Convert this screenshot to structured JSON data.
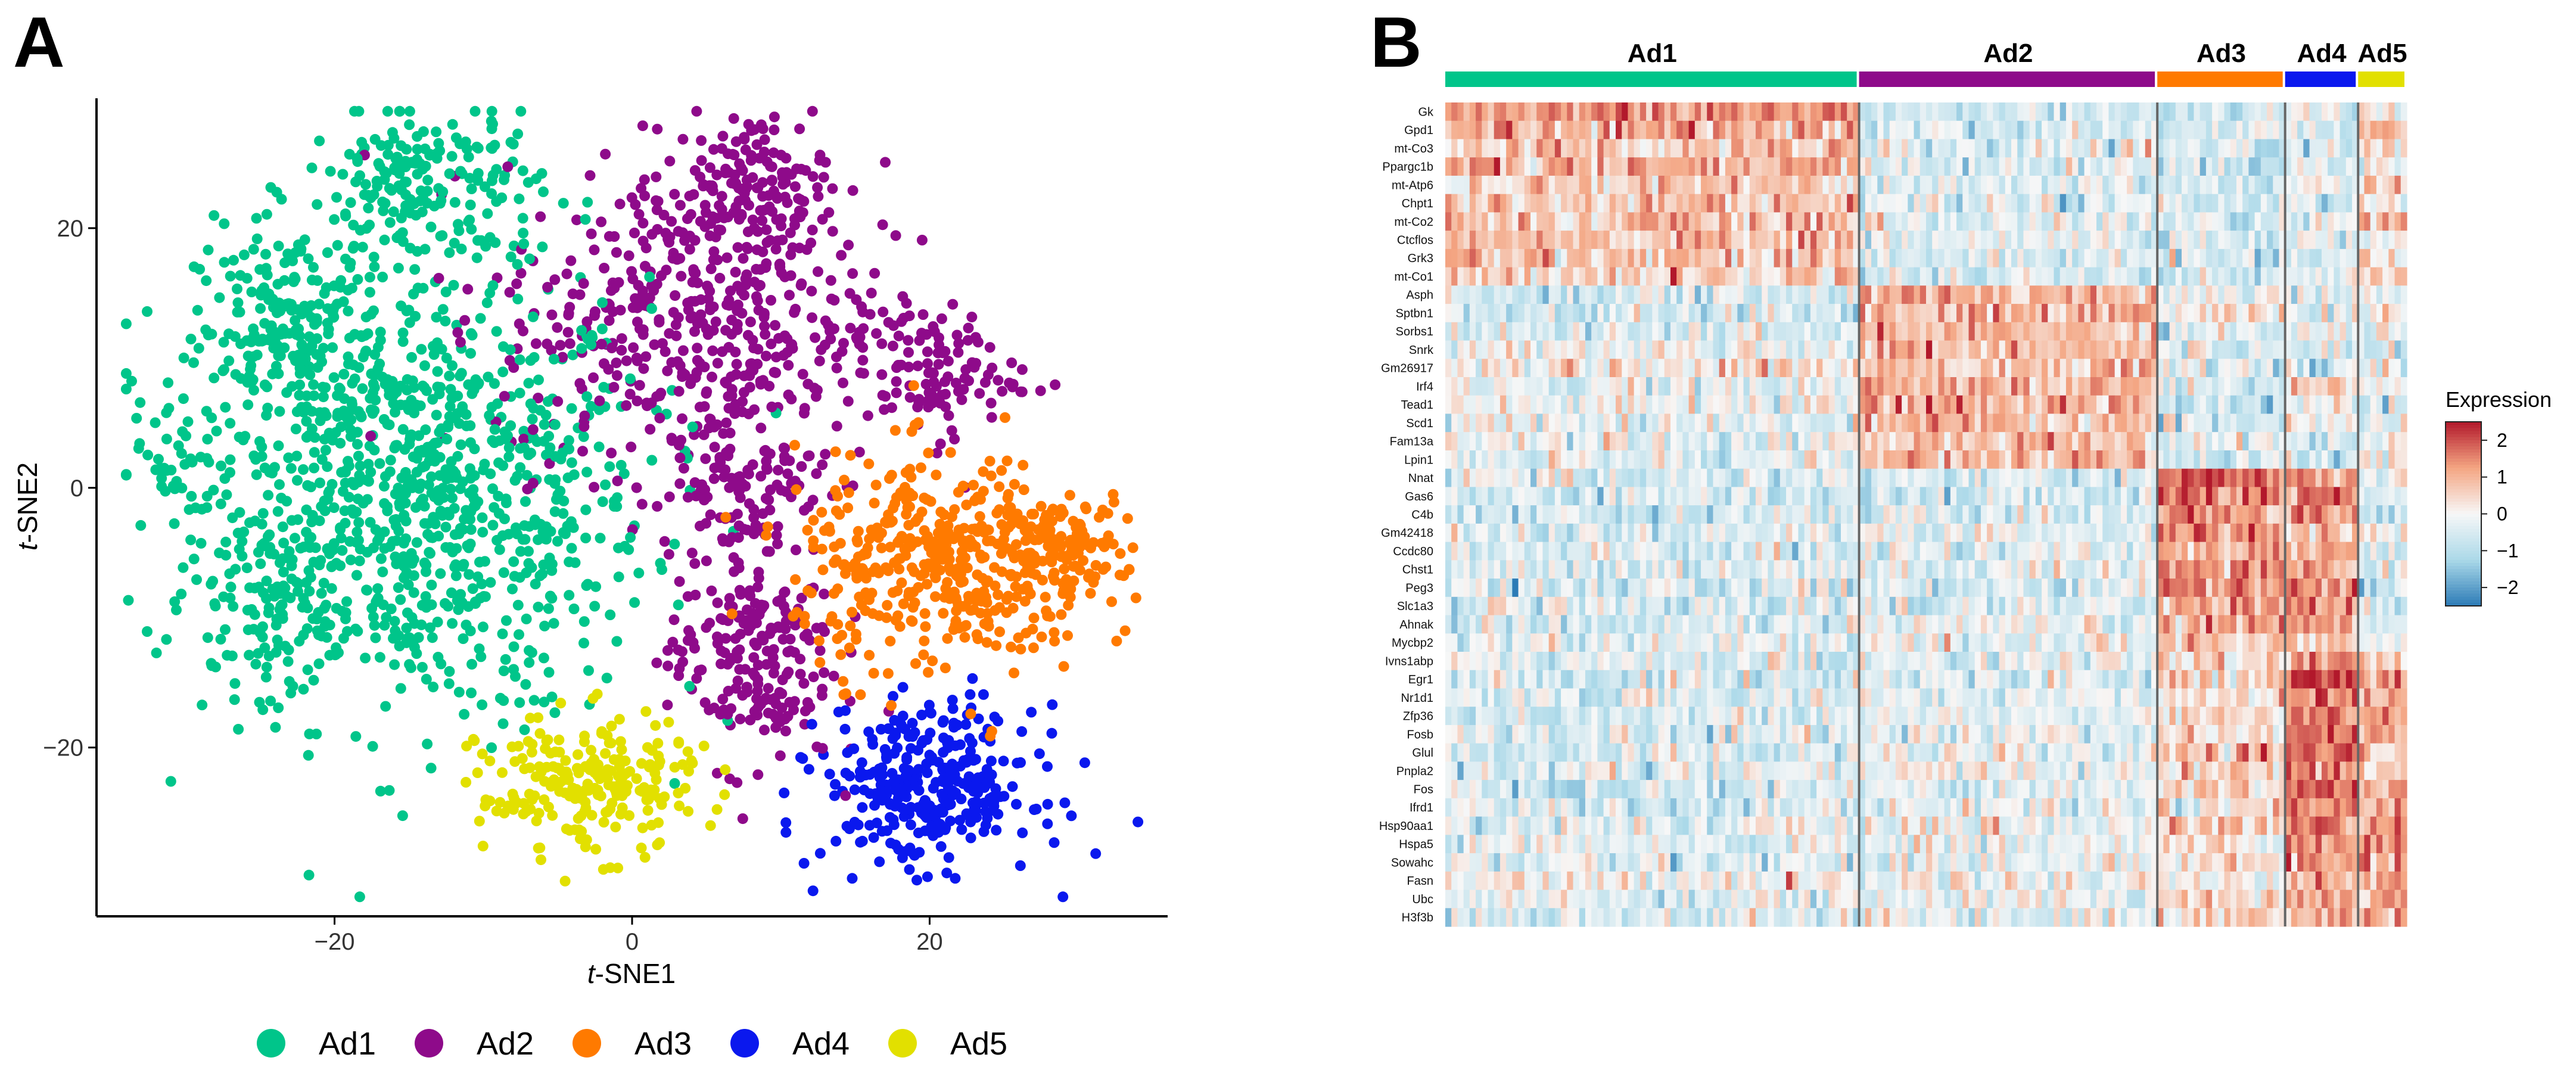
{
  "panels": {
    "a_letter": "A",
    "b_letter": "B"
  },
  "colors": {
    "Ad1": "#00c58a",
    "Ad2": "#8e0a8a",
    "Ad3": "#ff7a00",
    "Ad4": "#0a18ee",
    "Ad5": "#e2e000",
    "heat_low": "#2c7bb6",
    "heat_mid": "#f7f7f7",
    "heat_high": "#b2182b"
  },
  "chart_data": [
    {
      "type": "scatter",
      "xlabel_italic": "t",
      "xlabel_rest": "-SNE1",
      "ylabel_italic": "t",
      "ylabel_rest": "-SNE2",
      "xlim": [
        -36,
        36
      ],
      "ylim": [
        -33,
        30
      ],
      "xticks": [
        -20,
        0,
        20
      ],
      "xtick_labels": [
        "−20",
        "0",
        "20"
      ],
      "yticks": [
        -20,
        0,
        20
      ],
      "ytick_labels": [
        "−20",
        "0",
        "20"
      ],
      "legend_position": "bottom",
      "legend": [
        "Ad1",
        "Ad2",
        "Ad3",
        "Ad4",
        "Ad5"
      ],
      "clusters": [
        {
          "name": "Ad1",
          "regions": [
            {
              "cx": -14,
              "cy": -1,
              "sx": 7.5,
              "sy": 8.5,
              "n": 900
            },
            {
              "cx": -23,
              "cy": 12,
              "sx": 3.2,
              "sy": 4,
              "n": 200
            },
            {
              "cx": -14,
              "cy": 23,
              "sx": 4,
              "sy": 3.2,
              "n": 200
            },
            {
              "cx": -24,
              "cy": -8,
              "sx": 3,
              "sy": 4,
              "n": 120
            },
            {
              "cx": -31,
              "cy": 3,
              "sx": 1.3,
              "sy": 2,
              "n": 30
            }
          ]
        },
        {
          "name": "Ad2",
          "regions": [
            {
              "cx": 4,
              "cy": 13,
              "sx": 6.5,
              "sy": 6,
              "n": 450
            },
            {
              "cx": 8,
              "cy": 23,
              "sx": 2.6,
              "sy": 3,
              "n": 150
            },
            {
              "cx": 20,
              "cy": 9,
              "sx": 3,
              "sy": 2.5,
              "n": 110
            },
            {
              "cx": 8,
              "cy": -13,
              "sx": 2.8,
              "sy": 4.2,
              "n": 210
            },
            {
              "cx": 8,
              "cy": 1,
              "sx": 2.5,
              "sy": 3.5,
              "n": 120
            }
          ]
        },
        {
          "name": "Ad3",
          "regions": [
            {
              "cx": 21,
              "cy": -6,
              "sx": 5,
              "sy": 4.2,
              "n": 440
            },
            {
              "cx": 29,
              "cy": -4,
              "sx": 2.5,
              "sy": 1.8,
              "n": 90
            }
          ]
        },
        {
          "name": "Ad4",
          "regions": [
            {
              "cx": 20,
              "cy": -23,
              "sx": 3.5,
              "sy": 3,
              "n": 330
            }
          ]
        },
        {
          "name": "Ad5",
          "regions": [
            {
              "cx": -3,
              "cy": -23,
              "sx": 3.6,
              "sy": 2.6,
              "n": 230
            }
          ]
        }
      ]
    },
    {
      "type": "heatmap",
      "legend_title": "Expression",
      "scale_ticks": [
        2,
        1,
        0,
        -1,
        -2
      ],
      "scale_tick_labels": [
        "2",
        "1",
        "0",
        "−1",
        "−2"
      ],
      "value_range": [
        -2.5,
        2.5
      ],
      "column_groups": [
        {
          "name": "Ad1",
          "n": 68
        },
        {
          "name": "Ad2",
          "n": 49
        },
        {
          "name": "Ad3",
          "n": 21
        },
        {
          "name": "Ad4",
          "n": 12
        },
        {
          "name": "Ad5",
          "n": 8
        }
      ],
      "rows": [
        {
          "gene": "Gk",
          "means": [
            1.3,
            -0.6,
            -0.5,
            -0.4,
            0.0
          ]
        },
        {
          "gene": "Gpd1",
          "means": [
            1.0,
            -0.5,
            -0.5,
            -0.3,
            1.2
          ]
        },
        {
          "gene": "mt-Co3",
          "means": [
            0.7,
            -0.5,
            -0.6,
            -0.4,
            0.5
          ]
        },
        {
          "gene": "Ppargc1b",
          "means": [
            0.9,
            -0.4,
            -0.6,
            -0.5,
            0.4
          ]
        },
        {
          "gene": "mt-Atp6",
          "means": [
            0.7,
            -0.4,
            -0.5,
            -0.3,
            0.5
          ]
        },
        {
          "gene": "Chpt1",
          "means": [
            0.8,
            -0.3,
            -0.5,
            -0.4,
            0.3
          ]
        },
        {
          "gene": "mt-Co2",
          "means": [
            0.7,
            -0.4,
            -0.6,
            -0.3,
            0.6
          ]
        },
        {
          "gene": "Ctcflos",
          "means": [
            0.8,
            -0.3,
            -0.6,
            -0.4,
            0.0
          ]
        },
        {
          "gene": "Grk3",
          "means": [
            0.8,
            -0.5,
            -0.5,
            -0.5,
            0.3
          ]
        },
        {
          "gene": "mt-Co1",
          "means": [
            0.6,
            -0.4,
            -0.6,
            -0.3,
            0.5
          ]
        },
        {
          "gene": "Asph",
          "means": [
            -0.5,
            1.0,
            0.0,
            -0.3,
            0.2
          ]
        },
        {
          "gene": "Sptbn1",
          "means": [
            -0.6,
            1.0,
            0.3,
            -0.2,
            0.0
          ]
        },
        {
          "gene": "Sorbs1",
          "means": [
            -0.5,
            0.9,
            -0.3,
            0.0,
            -0.4
          ]
        },
        {
          "gene": "Snrk",
          "means": [
            0.0,
            1.0,
            -0.4,
            -0.4,
            -0.3
          ]
        },
        {
          "gene": "Gm26917",
          "means": [
            0.3,
            0.9,
            -0.5,
            -0.5,
            -0.5
          ]
        },
        {
          "gene": "Irf4",
          "means": [
            -0.3,
            0.9,
            -0.4,
            0.8,
            0.1
          ]
        },
        {
          "gene": "Tead1",
          "means": [
            -0.2,
            1.0,
            -0.5,
            0.0,
            -0.4
          ]
        },
        {
          "gene": "Scd1",
          "means": [
            -0.3,
            0.7,
            -0.5,
            -0.3,
            -0.3
          ]
        },
        {
          "gene": "Fam13a",
          "means": [
            -0.2,
            0.8,
            -0.4,
            -0.4,
            -0.2
          ]
        },
        {
          "gene": "Lpin1",
          "means": [
            -0.3,
            0.9,
            -0.8,
            -0.5,
            0.1
          ]
        },
        {
          "gene": "Nnat",
          "means": [
            -0.4,
            -0.5,
            1.7,
            1.4,
            -0.3
          ]
        },
        {
          "gene": "Gas6",
          "means": [
            -0.6,
            -0.6,
            1.6,
            1.5,
            -0.5
          ]
        },
        {
          "gene": "C4b",
          "means": [
            -0.5,
            -0.5,
            1.5,
            1.3,
            -0.4
          ]
        },
        {
          "gene": "Gm42418",
          "means": [
            -0.4,
            -0.3,
            1.4,
            0.8,
            0.0
          ]
        },
        {
          "gene": "Ccdc80",
          "means": [
            -0.5,
            -0.4,
            1.2,
            1.3,
            -0.4
          ]
        },
        {
          "gene": "Chst1",
          "means": [
            -0.4,
            -0.4,
            1.3,
            1.2,
            -0.4
          ]
        },
        {
          "gene": "Peg3",
          "means": [
            -0.5,
            -0.4,
            1.4,
            1.5,
            -0.5
          ]
        },
        {
          "gene": "Slc1a3",
          "means": [
            -0.5,
            -0.4,
            1.2,
            1.3,
            -0.5
          ]
        },
        {
          "gene": "Ahnak",
          "means": [
            -0.5,
            -0.4,
            1.2,
            1.2,
            -0.3
          ]
        },
        {
          "gene": "Mycbp2",
          "means": [
            -0.2,
            -0.2,
            0.8,
            0.8,
            -0.2
          ]
        },
        {
          "gene": "Ivns1abp",
          "means": [
            -0.4,
            -0.3,
            0.3,
            1.6,
            0.3
          ]
        },
        {
          "gene": "Egr1",
          "means": [
            -0.5,
            -0.3,
            0.6,
            2.0,
            1.0
          ]
        },
        {
          "gene": "Nr1d1",
          "means": [
            -0.4,
            -0.3,
            0.4,
            1.7,
            1.1
          ]
        },
        {
          "gene": "Zfp36",
          "means": [
            -0.5,
            -0.3,
            0.5,
            1.8,
            1.2
          ]
        },
        {
          "gene": "Fosb",
          "means": [
            -0.5,
            -0.2,
            0.3,
            1.8,
            0.8
          ]
        },
        {
          "gene": "Glul",
          "means": [
            -0.4,
            -0.3,
            0.6,
            1.6,
            0.9
          ]
        },
        {
          "gene": "Pnpla2",
          "means": [
            -0.4,
            -0.1,
            0.5,
            1.5,
            1.0
          ]
        },
        {
          "gene": "Fos",
          "means": [
            -0.5,
            -0.3,
            0.5,
            1.9,
            1.3
          ]
        },
        {
          "gene": "Ifrd1",
          "means": [
            -0.5,
            -0.2,
            0.3,
            1.6,
            1.2
          ]
        },
        {
          "gene": "Hsp90aa1",
          "means": [
            -0.3,
            -0.2,
            0.6,
            1.4,
            1.3
          ]
        },
        {
          "gene": "Hspa5",
          "means": [
            -0.4,
            -0.2,
            0.3,
            1.1,
            1.6
          ]
        },
        {
          "gene": "Sowahc",
          "means": [
            -0.4,
            -0.2,
            0.3,
            1.3,
            1.5
          ]
        },
        {
          "gene": "Fasn",
          "means": [
            0.1,
            0.0,
            0.2,
            0.9,
            1.2
          ]
        },
        {
          "gene": "Ubc",
          "means": [
            -0.3,
            -0.2,
            0.6,
            1.2,
            1.1
          ]
        },
        {
          "gene": "H3f3b",
          "means": [
            -0.4,
            -0.2,
            0.5,
            1.0,
            1.0
          ]
        }
      ]
    }
  ]
}
